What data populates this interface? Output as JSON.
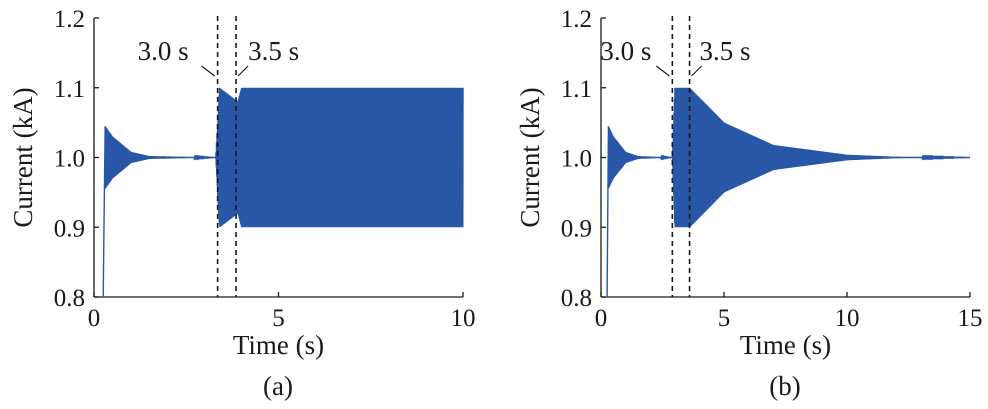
{
  "chart_data": [
    {
      "type": "line",
      "panel_label": "(a)",
      "xlabel": "Time (s)",
      "ylabel": "Current (kA)",
      "xlim": [
        0,
        10
      ],
      "ylim": [
        0.8,
        1.2
      ],
      "xticks": [
        "0",
        "5",
        "10"
      ],
      "yticks": [
        "0.8",
        "0.9",
        "1.0",
        "1.1",
        "1.2"
      ],
      "line_color": "#2857a8",
      "markers": [
        {
          "x": 3.35,
          "label": "3.0 s"
        },
        {
          "x": 3.85,
          "label": "3.5 s"
        }
      ],
      "series_envelope": [
        {
          "t": 0.3,
          "center": 1.0,
          "amp": 0.045
        },
        {
          "t": 0.5,
          "center": 1.0,
          "amp": 0.03
        },
        {
          "t": 1.0,
          "center": 1.0,
          "amp": 0.008
        },
        {
          "t": 1.5,
          "center": 1.0,
          "amp": 0.002
        },
        {
          "t": 3.3,
          "center": 1.0,
          "amp": 0.0
        },
        {
          "t": 3.4,
          "center": 1.0,
          "amp": 0.1
        },
        {
          "t": 3.9,
          "center": 1.0,
          "amp": 0.08
        },
        {
          "t": 4.0,
          "center": 1.0,
          "amp": 0.1
        },
        {
          "t": 10.0,
          "center": 1.0,
          "amp": 0.1
        }
      ]
    },
    {
      "type": "line",
      "panel_label": "(b)",
      "xlabel": "Time (s)",
      "ylabel": "Current (kA)",
      "xlim": [
        0,
        15
      ],
      "ylim": [
        0.8,
        1.2
      ],
      "xticks": [
        "0",
        "5",
        "10",
        "15"
      ],
      "yticks": [
        "0.8",
        "0.9",
        "1.0",
        "1.1",
        "1.2"
      ],
      "line_color": "#2857a8",
      "markers": [
        {
          "x": 2.9,
          "label": "3.0 s"
        },
        {
          "x": 3.6,
          "label": "3.5 s"
        }
      ],
      "series_envelope": [
        {
          "t": 0.3,
          "center": 1.0,
          "amp": 0.045
        },
        {
          "t": 0.5,
          "center": 1.0,
          "amp": 0.03
        },
        {
          "t": 1.0,
          "center": 1.0,
          "amp": 0.008
        },
        {
          "t": 1.5,
          "center": 1.0,
          "amp": 0.002
        },
        {
          "t": 2.9,
          "center": 1.0,
          "amp": 0.0
        },
        {
          "t": 3.0,
          "center": 1.0,
          "amp": 0.1
        },
        {
          "t": 3.6,
          "center": 1.0,
          "amp": 0.1
        },
        {
          "t": 5.0,
          "center": 1.0,
          "amp": 0.05
        },
        {
          "t": 7.0,
          "center": 1.0,
          "amp": 0.018
        },
        {
          "t": 10.0,
          "center": 1.0,
          "amp": 0.004
        },
        {
          "t": 12.0,
          "center": 1.0,
          "amp": 0.001
        },
        {
          "t": 15.0,
          "center": 1.0,
          "amp": 0.0
        }
      ]
    }
  ]
}
